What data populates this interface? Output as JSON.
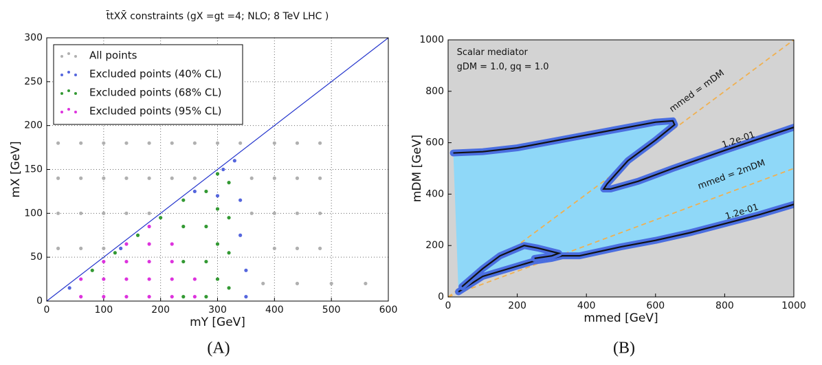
{
  "chart_data": [
    {
      "type": "scatter",
      "title": "t̄tXX̄ constraints (gX =gt =4; NLO; 8 TeV LHC )",
      "xlabel": "mY [GeV]",
      "ylabel": "mX [GeV]",
      "xlim": [
        0,
        600
      ],
      "xticks": [
        0,
        100,
        200,
        300,
        400,
        500,
        600
      ],
      "ylim": [
        0,
        300
      ],
      "yticks": [
        0,
        50,
        100,
        150,
        200,
        250,
        300
      ],
      "grid": true,
      "legend": "upper left",
      "line_color": "#2233cc",
      "series": [
        {
          "name": "All points",
          "color": "#b0b0b0",
          "x": [
            20,
            60,
            100,
            140,
            180,
            220,
            260,
            300,
            340,
            400,
            440,
            480,
            20,
            60,
            100,
            140,
            180,
            220,
            260,
            360,
            400,
            440,
            480,
            20,
            60,
            100,
            140,
            180,
            360,
            400,
            440,
            480,
            20,
            60,
            100,
            400,
            440,
            480,
            380,
            440,
            500,
            560
          ],
          "values": [
            180,
            180,
            180,
            180,
            180,
            180,
            180,
            180,
            180,
            180,
            180,
            180,
            140,
            140,
            140,
            140,
            140,
            140,
            140,
            140,
            140,
            140,
            140,
            100,
            100,
            100,
            100,
            100,
            100,
            100,
            100,
            100,
            60,
            60,
            60,
            60,
            60,
            60,
            20,
            20,
            20,
            20
          ]
        },
        {
          "name": "Excluded points (40% CL)",
          "color": "#5566dd",
          "x": [
            40,
            130,
            260,
            310,
            330,
            340,
            340,
            350,
            350,
            300
          ],
          "values": [
            15,
            60,
            125,
            150,
            160,
            115,
            75,
            35,
            5,
            120
          ]
        },
        {
          "name": "Excluded points (68% CL)",
          "color": "#339933",
          "x": [
            80,
            120,
            160,
            200,
            240,
            240,
            240,
            240,
            280,
            280,
            280,
            280,
            300,
            300,
            300,
            300,
            320,
            320,
            320,
            320
          ],
          "values": [
            35,
            55,
            75,
            95,
            5,
            45,
            85,
            115,
            5,
            45,
            85,
            125,
            25,
            65,
            105,
            145,
            15,
            55,
            95,
            135
          ]
        },
        {
          "name": "Excluded points (95% CL)",
          "color": "#dd33dd",
          "x": [
            60,
            60,
            100,
            100,
            100,
            140,
            140,
            140,
            140,
            180,
            180,
            180,
            180,
            180,
            220,
            220,
            220,
            220,
            260,
            260
          ],
          "values": [
            5,
            25,
            5,
            25,
            45,
            5,
            25,
            45,
            65,
            5,
            25,
            45,
            65,
            85,
            5,
            25,
            45,
            65,
            5,
            25
          ]
        }
      ]
    },
    {
      "type": "contour",
      "xlabel": "mmed [GeV]",
      "ylabel": "mDM [GeV]",
      "xlim": [
        0,
        1000
      ],
      "xticks": [
        0,
        200,
        400,
        600,
        800,
        1000
      ],
      "ylim": [
        0,
        1000
      ],
      "yticks": [
        0,
        200,
        400,
        600,
        800,
        1000
      ],
      "background": "#d3d3d3",
      "fill_color": "#8fd8f8",
      "outline_color": "#4a6ee0",
      "line_color": "#111111",
      "reference_color": "#f0b050",
      "annotations": [
        "Scalar mediator",
        "gDM = 1.0, gq = 1.0",
        "mmed = mDM",
        "mmed = 2mDM",
        "1.2e-01",
        "1.2e-01"
      ],
      "series": [
        {
          "x": [
            15,
            100,
            200,
            300,
            400,
            500,
            600,
            650,
            655,
            600,
            520,
            460,
            450,
            470,
            550,
            650,
            800,
            1000
          ],
          "values": [
            560,
            565,
            580,
            605,
            630,
            655,
            680,
            685,
            670,
            610,
            530,
            440,
            420,
            420,
            450,
            500,
            570,
            660
          ]
        },
        {
          "x": [
            30,
            100,
            200,
            250,
            300,
            330,
            380,
            500,
            600,
            700,
            800,
            900,
            1000
          ],
          "values": [
            20,
            80,
            120,
            140,
            150,
            160,
            160,
            195,
            220,
            250,
            285,
            320,
            360
          ]
        },
        {
          "x": [
            40,
            100,
            150,
            220,
            260,
            320,
            300,
            250
          ],
          "values": [
            40,
            110,
            160,
            200,
            190,
            170,
            160,
            150
          ]
        }
      ]
    }
  ],
  "captions": [
    "(A)",
    "(B)"
  ]
}
